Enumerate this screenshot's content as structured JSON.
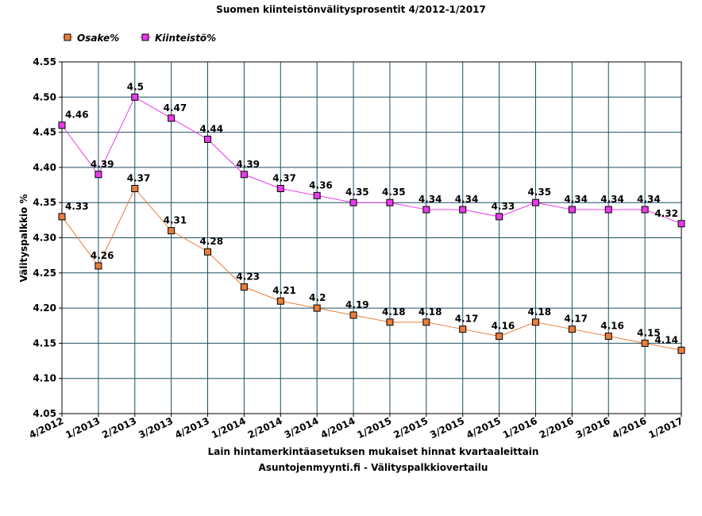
{
  "chart_data": {
    "type": "line",
    "title": "Suomen kiinteistönvälitysprosentit 4/2012-1/2017",
    "ylabel": "Välityspalkkio %",
    "xlabel": "Lain hintamerkintäasetuksen mukaiset hinnat kvartaaleittain",
    "source": "Asuntojenmyynti.fi - Välityspalkkiovertailu",
    "categories": [
      "4/2012",
      "1/2013",
      "2/2013",
      "3/2013",
      "4/2013",
      "1/2014",
      "2/2014",
      "3/2014",
      "4/2014",
      "1/2015",
      "2/2015",
      "3/2015",
      "4/2015",
      "1/2016",
      "2/2016",
      "3/2016",
      "4/2016",
      "1/2017"
    ],
    "ylim": [
      4.05,
      4.55
    ],
    "yticks": [
      "4.55",
      "4.50",
      "4.45",
      "4.40",
      "4.35",
      "4.30",
      "4.25",
      "4.20",
      "4.15",
      "4.10",
      "4.05"
    ],
    "grid": true,
    "legend_position": "top-left",
    "series": [
      {
        "name": "Osake%",
        "color": "#e87e3c",
        "values": [
          4.33,
          4.26,
          4.37,
          4.31,
          4.28,
          4.23,
          4.21,
          4.2,
          4.19,
          4.18,
          4.18,
          4.17,
          4.16,
          4.18,
          4.17,
          4.16,
          4.15,
          4.14
        ],
        "labels": [
          "4.33",
          "4.26",
          "4.37",
          "4.31",
          "4.28",
          "4.23",
          "4.21",
          "4.2",
          "4.19",
          "4.18",
          "4.18",
          "4.17",
          "4.16",
          "4.18",
          "4.17",
          "4.16",
          "4.15",
          "4.14"
        ]
      },
      {
        "name": "Kiinteistö%",
        "color": "#e83ce8",
        "values": [
          4.46,
          4.39,
          4.5,
          4.47,
          4.44,
          4.39,
          4.37,
          4.36,
          4.35,
          4.35,
          4.34,
          4.34,
          4.33,
          4.35,
          4.34,
          4.34,
          4.34,
          4.32
        ],
        "labels": [
          "4.46",
          "4.39",
          "4.5",
          "4.47",
          "4.44",
          "4.39",
          "4.37",
          "4.36",
          "4.35",
          "4.35",
          "4.34",
          "4.34",
          "4.33",
          "4.35",
          "4.34",
          "4.34",
          "4.34",
          "4.32"
        ]
      }
    ],
    "colors": {
      "grid": "#1f4f63",
      "frame": "#000000"
    }
  }
}
